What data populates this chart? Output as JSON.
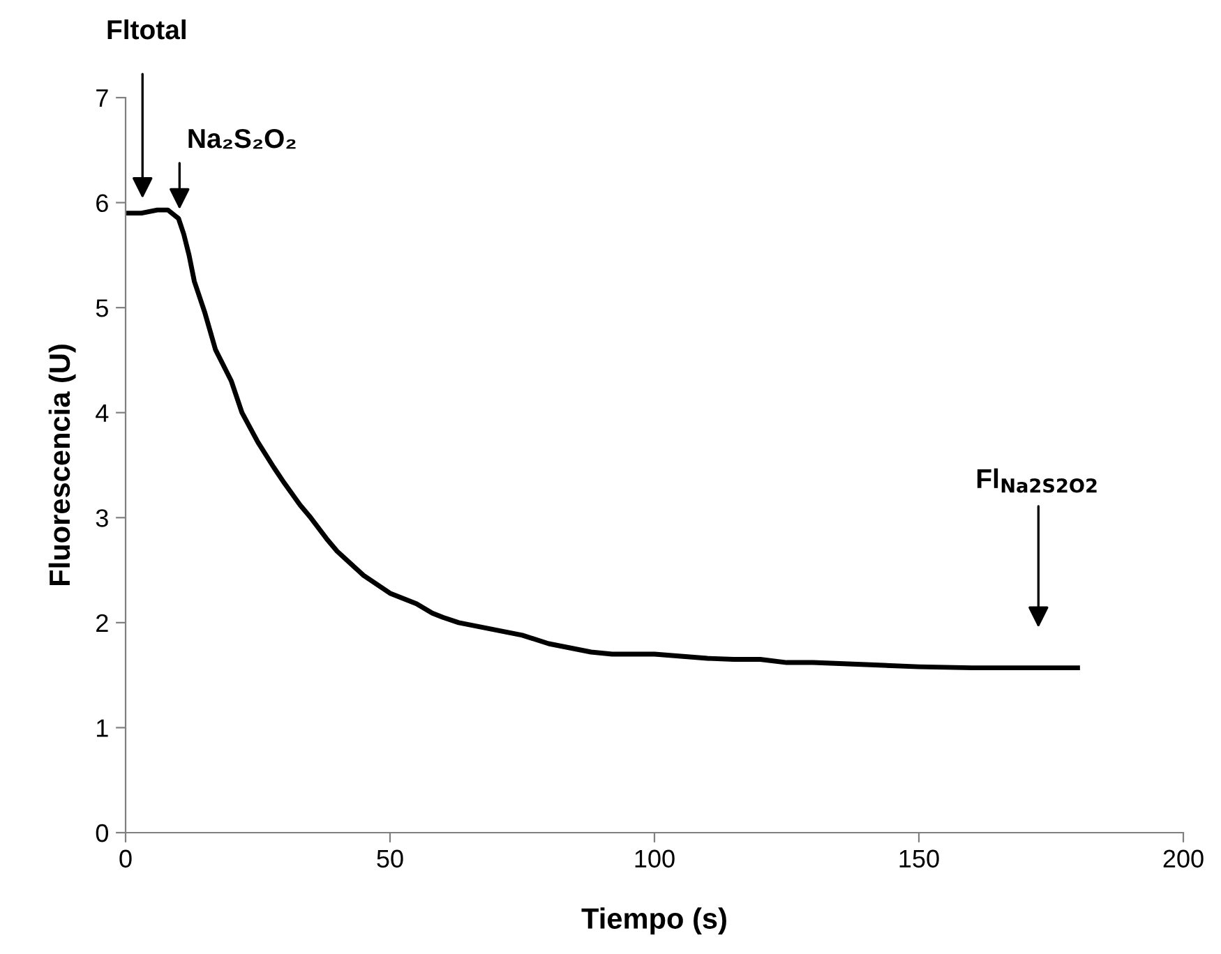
{
  "chart_data": {
    "type": "line",
    "xlabel": "Tiempo (s)",
    "ylabel": "Fluorescencia (U)",
    "x": [
      0,
      3,
      6,
      8,
      10,
      11,
      12,
      13,
      15,
      17,
      20,
      22,
      25,
      28,
      30,
      33,
      35,
      38,
      40,
      45,
      50,
      55,
      58,
      60,
      63,
      65,
      70,
      75,
      80,
      85,
      88,
      90,
      92,
      100,
      105,
      110,
      115,
      120,
      125,
      130,
      140,
      150,
      160,
      170,
      180
    ],
    "series": [
      {
        "color": "#000000",
        "values": [
          5.9,
          5.9,
          5.93,
          5.93,
          5.85,
          5.7,
          5.5,
          5.25,
          4.95,
          4.6,
          4.3,
          4.0,
          3.72,
          3.48,
          3.33,
          3.12,
          3.0,
          2.8,
          2.68,
          2.45,
          2.28,
          2.18,
          2.09,
          2.05,
          2.0,
          1.98,
          1.93,
          1.88,
          1.8,
          1.75,
          1.72,
          1.71,
          1.7,
          1.7,
          1.68,
          1.66,
          1.65,
          1.65,
          1.62,
          1.62,
          1.6,
          1.58,
          1.57,
          1.57,
          1.57
        ]
      }
    ],
    "xlim": [
      0,
      200
    ],
    "xticks": [
      0,
      50,
      100,
      150,
      200
    ],
    "ylim": [
      0,
      7
    ],
    "yticks": [
      0,
      1,
      2,
      3,
      4,
      5,
      6,
      7
    ],
    "grid": false,
    "legend": false,
    "marker": "none",
    "line_style": "solid",
    "annotations": [
      "Fltotal",
      "Na₂S₂O₂",
      "Fl$_{Na2S2O2}$"
    ]
  }
}
